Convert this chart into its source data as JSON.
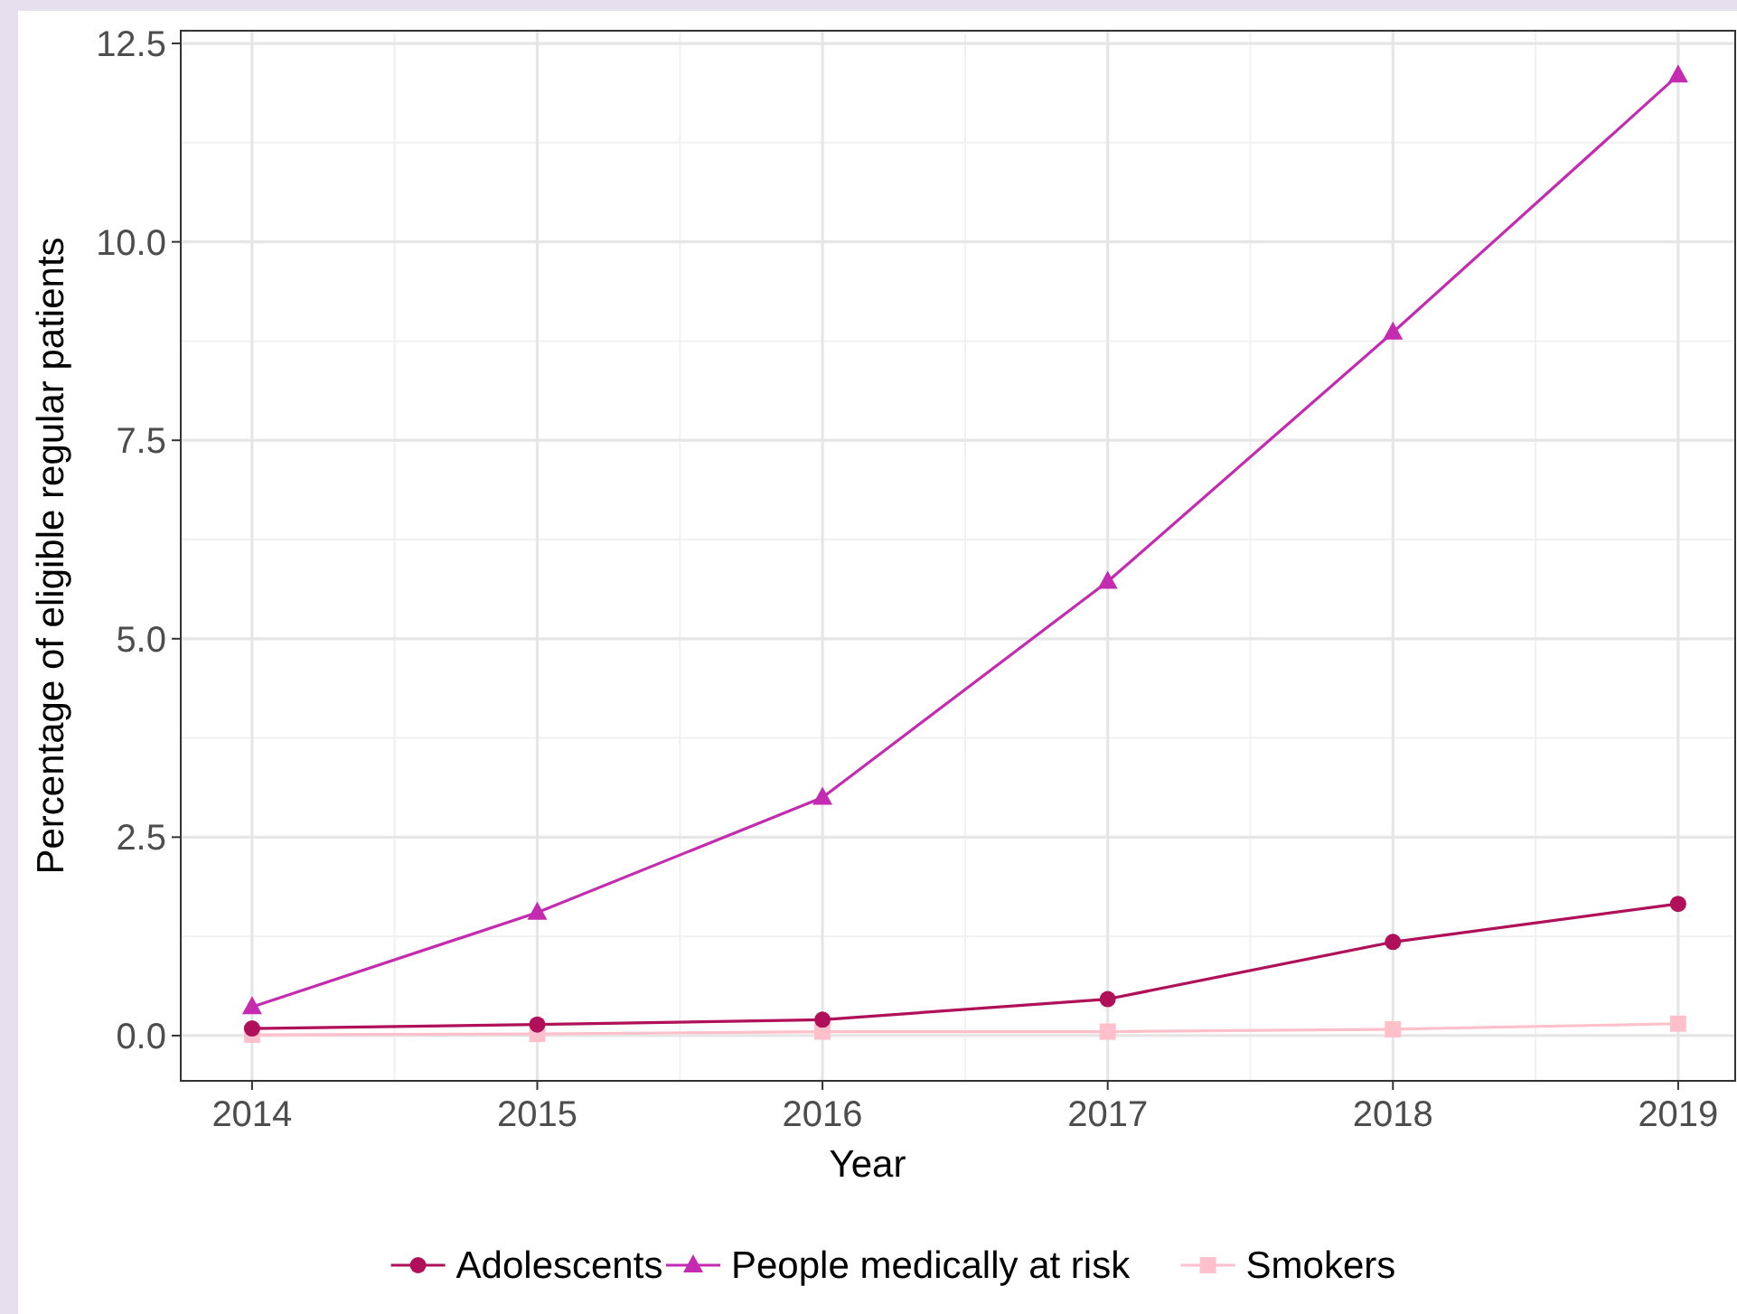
{
  "chart_data": {
    "type": "line",
    "xlabel": "Year",
    "ylabel": "Percentage of eligible regular patients",
    "x": [
      2014,
      2015,
      2016,
      2017,
      2018,
      2019
    ],
    "series": [
      {
        "name": "Adolescents",
        "color": "#b0105a",
        "marker": "circle",
        "values": [
          0.09,
          0.14,
          0.2,
          0.46,
          1.18,
          1.66
        ]
      },
      {
        "name": "People medically at risk",
        "color": "#c42bb0",
        "marker": "triangle",
        "values": [
          0.36,
          1.55,
          3.0,
          5.72,
          8.86,
          12.1
        ]
      },
      {
        "name": "Smokers",
        "color": "#ffc0cb",
        "marker": "square",
        "values": [
          0.01,
          0.02,
          0.05,
          0.05,
          0.08,
          0.15
        ]
      }
    ],
    "xlim": [
      2013.75,
      2019.2
    ],
    "xticks": [
      2014,
      2015,
      2016,
      2017,
      2018,
      2019
    ],
    "ylim": [
      -0.57,
      12.66
    ],
    "yticks": [
      {
        "value": 0,
        "label": "0.0"
      },
      {
        "value": 2.5,
        "label": "2.5"
      },
      {
        "value": 5,
        "label": "5.0"
      },
      {
        "value": 7.5,
        "label": "7.5"
      },
      {
        "value": 10,
        "label": "10.0"
      },
      {
        "value": 12.5,
        "label": "12.5"
      }
    ],
    "grid": true,
    "legend": "bottom",
    "line_style": "solid"
  }
}
